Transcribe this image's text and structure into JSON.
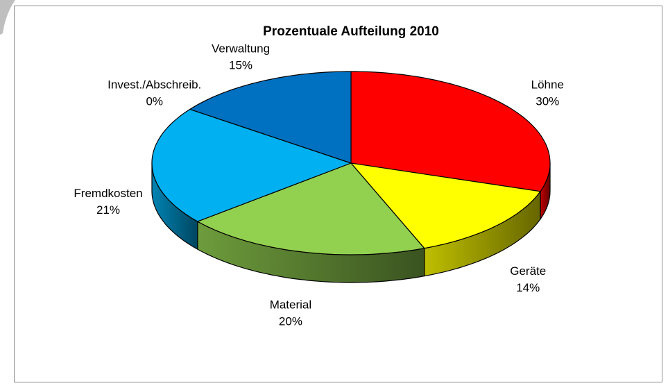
{
  "chart_data": {
    "type": "pie3d",
    "title": "Prozentuale Aufteilung 2010",
    "categories": [
      "Löhne",
      "Geräte",
      "Material",
      "Fremdkosten",
      "Invest./Abschreib.",
      "Verwaltung"
    ],
    "values": [
      30,
      14,
      20,
      21,
      0,
      15
    ],
    "value_labels": [
      "30%",
      "14%",
      "20%",
      "21%",
      "0%",
      "15%"
    ],
    "colors": [
      "#ff0000",
      "#ffff00",
      "#92d050",
      "#00b0f0",
      "#7f7f7f",
      "#0070c0"
    ]
  }
}
